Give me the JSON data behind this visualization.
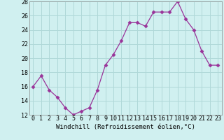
{
  "x": [
    0,
    1,
    2,
    3,
    4,
    5,
    6,
    7,
    8,
    9,
    10,
    11,
    12,
    13,
    14,
    15,
    16,
    17,
    18,
    19,
    20,
    21,
    22,
    23
  ],
  "y": [
    16,
    17.5,
    15.5,
    14.5,
    13,
    12,
    12.5,
    13,
    15.5,
    19,
    20.5,
    22.5,
    25,
    25,
    24.5,
    26.5,
    26.5,
    26.5,
    28,
    25.5,
    24,
    21,
    19,
    19
  ],
  "line_color": "#993399",
  "marker": "D",
  "marker_size": 2.5,
  "bg_color": "#d0f0f0",
  "grid_color": "#b0d8d8",
  "xlabel": "Windchill (Refroidissement éolien,°C)",
  "xlabel_fontsize": 6.5,
  "tick_fontsize": 6.0,
  "ylim": [
    12,
    28
  ],
  "xlim": [
    -0.5,
    23.5
  ],
  "yticks": [
    12,
    14,
    16,
    18,
    20,
    22,
    24,
    26,
    28
  ],
  "xticks": [
    0,
    1,
    2,
    3,
    4,
    5,
    6,
    7,
    8,
    9,
    10,
    11,
    12,
    13,
    14,
    15,
    16,
    17,
    18,
    19,
    20,
    21,
    22,
    23
  ]
}
